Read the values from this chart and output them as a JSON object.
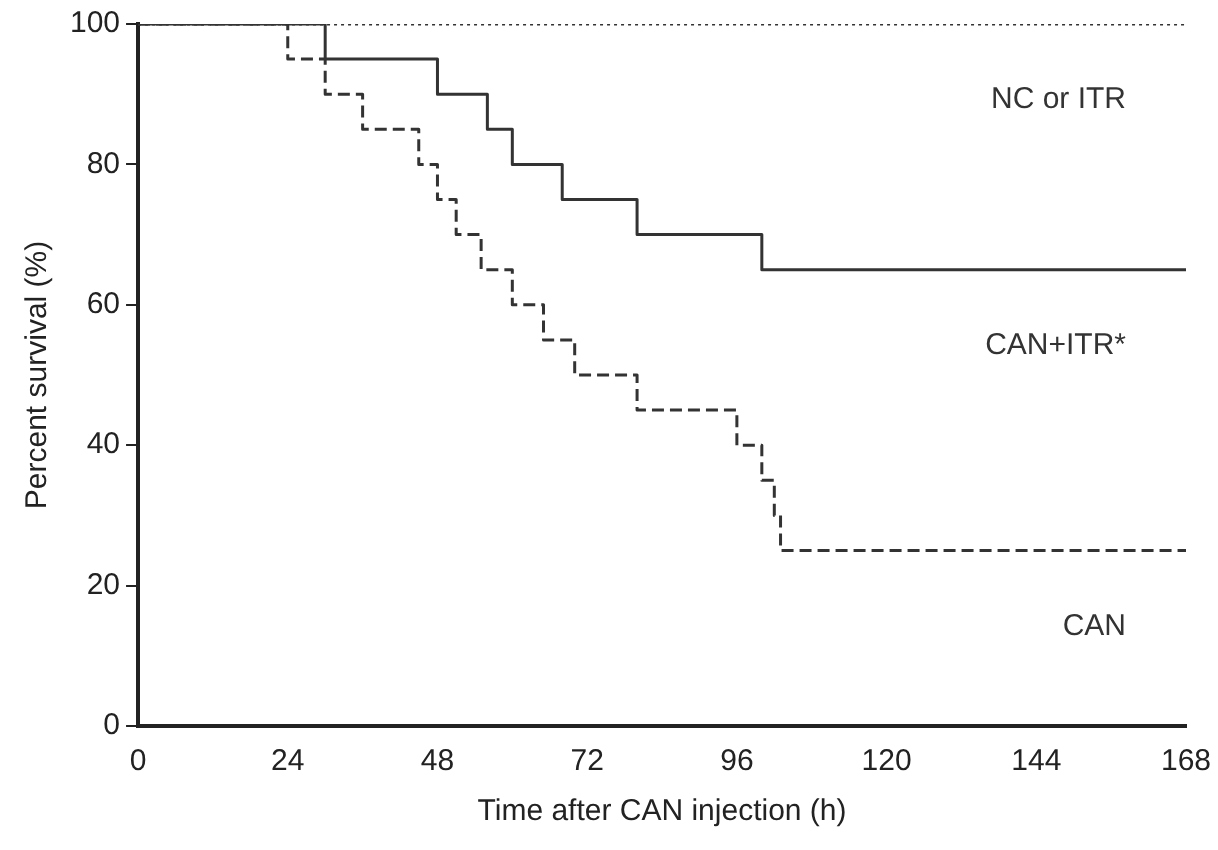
{
  "chart_data": {
    "type": "step",
    "xlabel": "Time after CAN injection (h)",
    "ylabel": "Percent survival (%)",
    "xlim": [
      0,
      168
    ],
    "xticks": [
      0,
      24,
      48,
      72,
      96,
      120,
      144,
      168
    ],
    "ylim": [
      0,
      100
    ],
    "yticks": [
      0,
      20,
      40,
      60,
      80,
      100
    ],
    "grid": false,
    "legend": false,
    "marker": "none",
    "series": [
      {
        "name": "NC or ITR",
        "color": "#333333",
        "line_style": "dotted",
        "x": [
          0,
          168
        ],
        "values": [
          100,
          100
        ]
      },
      {
        "name": "CAN+ITR*",
        "color": "#333333",
        "line_style": "solid",
        "x": [
          0,
          30,
          48,
          56,
          60,
          68,
          80,
          100,
          168
        ],
        "values": [
          100,
          95,
          90,
          85,
          80,
          75,
          70,
          65,
          65
        ]
      },
      {
        "name": "CAN",
        "color": "#333333",
        "line_style": "dashed",
        "x": [
          0,
          24,
          30,
          36,
          45,
          48,
          51,
          55,
          60,
          65,
          70,
          80,
          96,
          100,
          102,
          103,
          168
        ],
        "values": [
          100,
          95,
          90,
          85,
          80,
          75,
          70,
          65,
          60,
          55,
          50,
          45,
          40,
          35,
          30,
          25,
          25
        ]
      }
    ]
  }
}
